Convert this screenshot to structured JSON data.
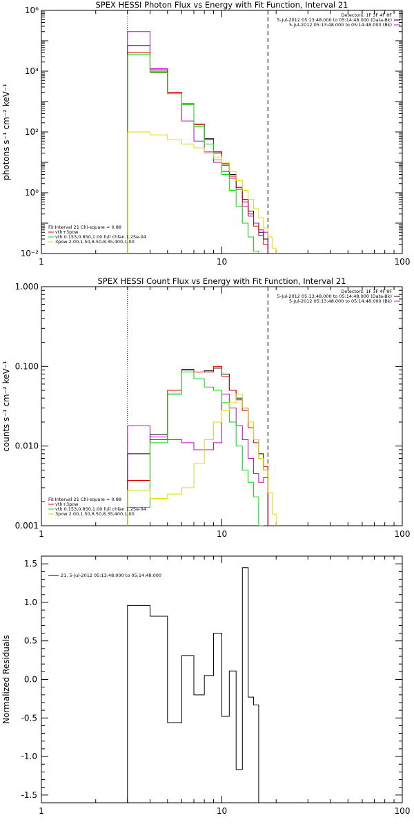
{
  "chart_data": [
    {
      "type": "line",
      "title": "SPEX HESSI Photon Flux vs Energy with Fit Function, Interval 21",
      "xlabel": "",
      "ylabel": "photons s⁻¹ cm⁻² keV⁻¹",
      "xscale": "log",
      "yscale": "log",
      "xlim": [
        1,
        100
      ],
      "ylim": [
        0.01,
        1000000
      ],
      "x_tick_labels": [
        "1",
        "10",
        "100"
      ],
      "y_tick_labels": [
        "10⁻²",
        "10⁰",
        "10²",
        "10⁴",
        "10⁶"
      ],
      "legend_top_right": [
        "Detectors: 1F 3F 4F 8F",
        "5-Jul-2012 05:13:48.000 to 05:14:48.000 (Data-Bk)",
        "5-Jul-2012 05:13:48.000 to 05:14:48.000 (Bk)"
      ],
      "legend_bottom_left": {
        "header": "Fit Interval 21   Chi-square = 0.88",
        "entries": [
          "vth+3pow",
          "vth 0.153,0.850,1.00  full chfan 1.25e-04",
          "3pow 2.00,1.50,8.50,8.35,400,1.00"
        ]
      },
      "vlines": [
        {
          "x": 3,
          "style": "dotted"
        },
        {
          "x": 18,
          "style": "dashed"
        }
      ],
      "bin_edges": [
        3,
        4,
        5,
        6,
        7,
        8,
        9,
        10,
        11,
        12,
        13,
        14,
        15,
        16,
        17,
        18,
        19,
        20,
        22
      ],
      "series": [
        {
          "name": "Data-Bk",
          "color": "#000000",
          "values": [
            70000,
            11000,
            2000,
            850,
            180,
            60,
            22,
            9,
            4,
            1.5,
            0.6,
            0.25,
            0.1,
            0.05,
            0.03,
            null,
            null,
            null
          ]
        },
        {
          "name": "Bk",
          "color": "#cc00cc",
          "values": [
            200000,
            12000,
            2000,
            230,
            50,
            22,
            10,
            5,
            3,
            1.5,
            0.35,
            0.17,
            0.1,
            0.06,
            0.05,
            null,
            null,
            null
          ]
        },
        {
          "name": "vth+3pow",
          "color": "#e00000",
          "values": [
            40000,
            9500,
            2000,
            850,
            175,
            55,
            20,
            8,
            3.5,
            1.3,
            0.5,
            0.2,
            0.08,
            0.04,
            0.02,
            null,
            null,
            null
          ]
        },
        {
          "name": "vth",
          "color": "#00dd00",
          "values": [
            35000,
            9000,
            1800,
            800,
            150,
            40,
            12,
            4,
            1.2,
            0.35,
            0.1,
            0.035,
            0.012,
            null,
            null,
            null,
            null,
            null
          ]
        },
        {
          "name": "3pow",
          "color": "#dddd00",
          "values": [
            100,
            80,
            55,
            40,
            30,
            20,
            15,
            10,
            5,
            2.5,
            1.2,
            0.6,
            0.3,
            0.15,
            0.07,
            0.035,
            0.015,
            null
          ]
        }
      ]
    },
    {
      "type": "line",
      "title": "SPEX HESSI Count Flux vs Energy with Fit Function, Interval 21",
      "xlabel": "",
      "ylabel": "counts s⁻¹ cm⁻² keV⁻¹",
      "xscale": "log",
      "yscale": "log",
      "xlim": [
        1,
        100
      ],
      "ylim": [
        0.001,
        1
      ],
      "x_tick_labels": [
        "1",
        "10",
        "100"
      ],
      "y_tick_labels": [
        "0.001",
        "0.010",
        "0.100",
        "1.000"
      ],
      "legend_top_right": [
        "Detectors: 1F 3F 4F 8F",
        "5-Jul-2012 05:13:48.000 to 05:14:48.000 (Data-Bk)",
        "5-Jul-2012 05:13:48.000 to 05:14:48.000 (Bk)"
      ],
      "legend_bottom_left": {
        "header": "Fit Interval 21   Chi-square = 0.88",
        "entries": [
          "vth+3pow",
          "vth 0.153,0.850,1.00  full chfan 1.25e-04",
          "3pow 2.00,1.50,8.50,8.35,400,1.00"
        ]
      },
      "vlines": [
        {
          "x": 3,
          "style": "dotted"
        },
        {
          "x": 18,
          "style": "dashed"
        }
      ],
      "bin_edges": [
        3,
        4,
        5,
        6,
        7,
        8,
        9,
        10,
        11,
        12,
        13,
        14,
        15,
        16,
        17,
        18,
        19,
        20,
        22
      ],
      "series": [
        {
          "name": "Data-Bk",
          "color": "#000000",
          "values": [
            0.008,
            0.014,
            0.045,
            0.09,
            0.085,
            0.088,
            0.095,
            0.08,
            0.05,
            0.04,
            0.03,
            0.02,
            0.012,
            0.008,
            0.005,
            null,
            null,
            null
          ]
        },
        {
          "name": "Bk",
          "color": "#cc00cc",
          "values": [
            0.018,
            0.013,
            0.012,
            0.011,
            0.009,
            0.009,
            0.011,
            0.045,
            0.03,
            0.018,
            0.012,
            0.007,
            0.0045,
            0.0035,
            0.004,
            null,
            null,
            null
          ]
        },
        {
          "name": "vth+3pow",
          "color": "#e00000",
          "values": [
            0.0037,
            0.012,
            0.05,
            0.092,
            0.085,
            0.085,
            0.1,
            0.075,
            0.05,
            0.038,
            0.028,
            0.017,
            0.011,
            0.007,
            0.0055,
            null,
            null,
            null
          ]
        },
        {
          "name": "vth",
          "color": "#00dd00",
          "values": [
            0.0017,
            0.011,
            0.045,
            0.085,
            0.07,
            0.055,
            0.05,
            0.035,
            0.02,
            0.01,
            0.005,
            0.0035,
            0.0023,
            0.001,
            null,
            null,
            null,
            null
          ]
        },
        {
          "name": "3pow",
          "color": "#dddd00",
          "values": [
            0.0028,
            0.0022,
            0.0025,
            0.003,
            0.006,
            0.012,
            0.02,
            0.028,
            0.035,
            0.045,
            0.03,
            0.02,
            0.012,
            0.007,
            0.005,
            0.0026,
            0.0014,
            null
          ]
        }
      ]
    },
    {
      "type": "line",
      "title": "",
      "xlabel": "",
      "ylabel": "Normalized Residuals",
      "xscale": "log",
      "yscale": "linear",
      "xlim": [
        1,
        100
      ],
      "ylim": [
        -1.6,
        1.6
      ],
      "x_tick_labels": [
        "1",
        "10",
        "100"
      ],
      "y_ticks": [
        -1.5,
        -1.0,
        -0.5,
        0.0,
        0.5,
        1.0,
        1.5
      ],
      "y_tick_labels": [
        "-1.5",
        "-1.0",
        "-0.5",
        "0.0",
        "0.5",
        "1.0",
        "1.5"
      ],
      "legend": [
        "21.  5-Jul-2012 05:13:48.000 to 05:14:48.000"
      ],
      "bin_edges": [
        3,
        4,
        5,
        6,
        7,
        8,
        9,
        10,
        11,
        12,
        13,
        14,
        15,
        16,
        17,
        18,
        19
      ],
      "series": [
        {
          "name": "21.  5-Jul-2012 05:13:48.000 to 05:14:48.000",
          "color": "#000000",
          "values": [
            0.96,
            0.82,
            -0.56,
            0.31,
            -0.2,
            0.05,
            0.6,
            -0.48,
            0.11,
            -1.17,
            1.45,
            -0.23,
            -0.33
          ]
        }
      ]
    }
  ]
}
